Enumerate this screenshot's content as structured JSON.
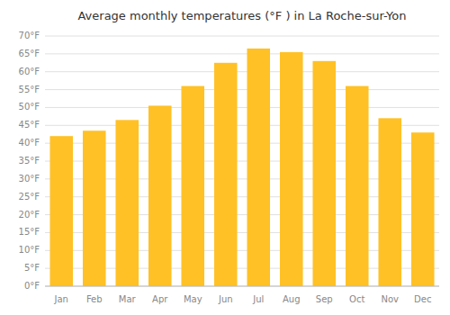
{
  "chart_data": {
    "type": "bar",
    "title": "Average monthly temperatures (°F ) in La Roche-sur-Yon",
    "categories": [
      "Jan",
      "Feb",
      "Mar",
      "Apr",
      "May",
      "Jun",
      "Jul",
      "Aug",
      "Sep",
      "Oct",
      "Nov",
      "Dec"
    ],
    "values": [
      42,
      43.5,
      46.5,
      50.5,
      56,
      62.5,
      66.5,
      65.5,
      63,
      56,
      47,
      43
    ],
    "color": "#FFC125",
    "ylim": [
      0,
      70
    ],
    "yticks": [
      {
        "value": 0,
        "label": "0°F"
      },
      {
        "value": 5,
        "label": "5°F"
      },
      {
        "value": 10,
        "label": "10°F"
      },
      {
        "value": 15,
        "label": "15°F"
      },
      {
        "value": 20,
        "label": "20°F"
      },
      {
        "value": 25,
        "label": "25°F"
      },
      {
        "value": 30,
        "label": "30°F"
      },
      {
        "value": 35,
        "label": "35°F"
      },
      {
        "value": 40,
        "label": "40°F"
      },
      {
        "value": 45,
        "label": "45°F"
      },
      {
        "value": 50,
        "label": "50°F"
      },
      {
        "value": 55,
        "label": "55°F"
      },
      {
        "value": 60,
        "label": "60°F"
      },
      {
        "value": 65,
        "label": "65°F"
      },
      {
        "value": 70,
        "label": "70°F"
      }
    ],
    "grid": true
  }
}
